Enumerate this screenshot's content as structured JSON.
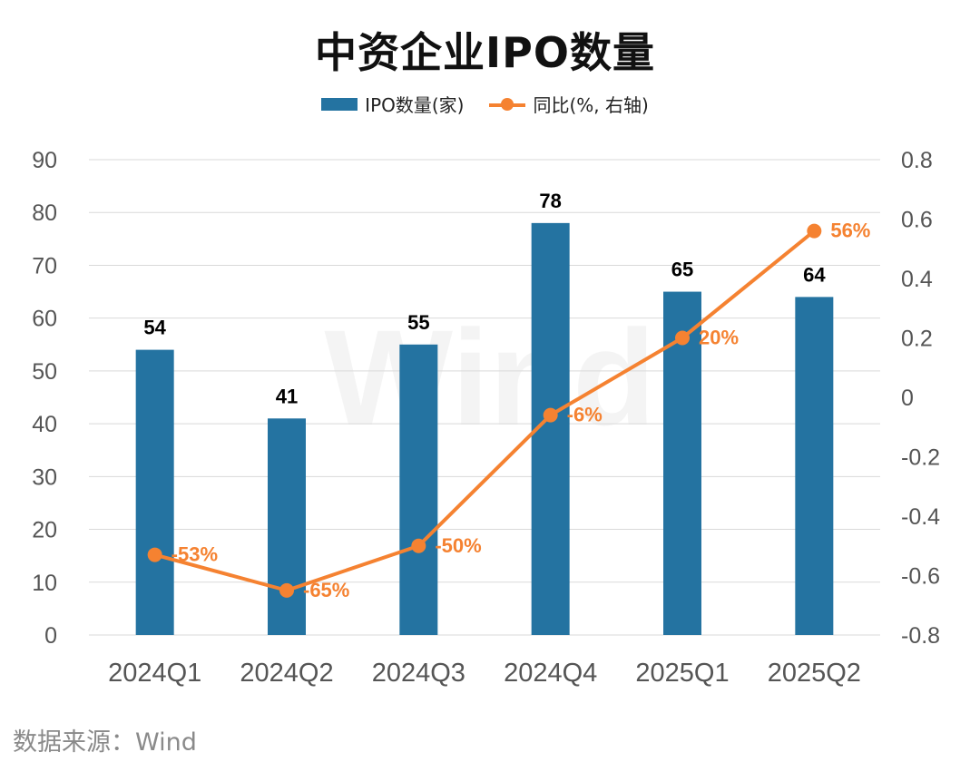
{
  "title": "中资企业IPO数量",
  "source": "数据来源：Wind",
  "watermark": "Wind",
  "legend": {
    "bar_label": "IPO数量(家)",
    "line_label": "同比(%, 右轴)"
  },
  "colors": {
    "bar": "#2473a1",
    "line": "#f58231",
    "grid": "#d9d9d9",
    "tick": "#555555"
  },
  "chart_data": {
    "type": "bar",
    "categories": [
      "2024Q1",
      "2024Q2",
      "2024Q3",
      "2024Q4",
      "2025Q1",
      "2025Q2"
    ],
    "series": [
      {
        "name": "IPO数量(家)",
        "type": "bar",
        "axis": "left",
        "values": [
          54,
          41,
          55,
          78,
          65,
          64
        ],
        "labels": [
          "54",
          "41",
          "55",
          "78",
          "65",
          "64"
        ]
      },
      {
        "name": "同比(%, 右轴)",
        "type": "line",
        "axis": "right",
        "values": [
          -0.53,
          -0.65,
          -0.5,
          -0.06,
          0.2,
          0.56
        ],
        "labels": [
          "-53%",
          "-65%",
          "-50%",
          "-6%",
          "20%",
          "56%"
        ]
      }
    ],
    "y_left": {
      "min": 0,
      "max": 90,
      "ticks": [
        "0",
        "10",
        "20",
        "30",
        "40",
        "50",
        "60",
        "70",
        "80",
        "90"
      ]
    },
    "y_right": {
      "min": -0.8,
      "max": 0.8,
      "ticks": [
        "-0.8",
        "-0.6",
        "-0.4",
        "-0.2",
        "0",
        "0.2",
        "0.4",
        "0.6",
        "0.8"
      ]
    },
    "grid": true,
    "legend_position": "top-center"
  }
}
